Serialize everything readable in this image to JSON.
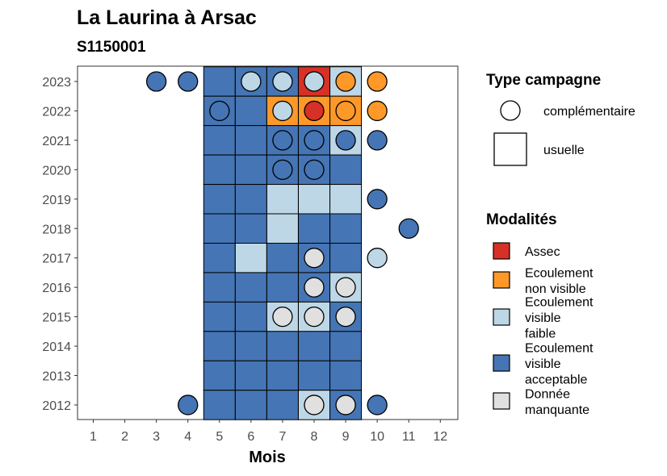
{
  "chart_data": {
    "type": "heatmap",
    "title": "La Laurina à Arsac",
    "subtitle": "S1150001",
    "xlabel": "Mois",
    "ylabel": "",
    "x_ticks": [
      "1",
      "2",
      "3",
      "4",
      "5",
      "6",
      "7",
      "8",
      "9",
      "10",
      "11",
      "12"
    ],
    "y_ticks": [
      "2012",
      "2013",
      "2014",
      "2015",
      "2016",
      "2017",
      "2018",
      "2019",
      "2020",
      "2021",
      "2022",
      "2023"
    ],
    "colors": {
      "Assec": "#d73027",
      "Ecoulement non visible": "#fe9929",
      "Ecoulement visible faible": "#bdd7e7",
      "Ecoulement visible acceptable": "#4575b4",
      "Donnée manquante": "#e0e0e0"
    },
    "legend_campaign": {
      "title": "Type campagne",
      "items": [
        "complémentaire",
        "usuelle"
      ]
    },
    "legend_modalites": {
      "title": "Modalités",
      "items": [
        {
          "key": "Assec",
          "lines": [
            "Assec"
          ]
        },
        {
          "key": "Ecoulement non visible",
          "lines": [
            "Ecoulement",
            "non visible"
          ]
        },
        {
          "key": "Ecoulement visible faible",
          "lines": [
            "Ecoulement",
            "visible",
            "faible"
          ]
        },
        {
          "key": "Ecoulement visible acceptable",
          "lines": [
            "Ecoulement",
            "visible",
            "acceptable"
          ]
        },
        {
          "key": "Donnée manquante",
          "lines": [
            "Donnée",
            "manquante"
          ]
        }
      ]
    },
    "usuelle_series": [
      {
        "year": 2023,
        "months": {
          "5": "Ecoulement visible acceptable",
          "6": "Ecoulement visible acceptable",
          "7": "Ecoulement visible acceptable",
          "8": "Assec",
          "9": "Ecoulement visible faible"
        }
      },
      {
        "year": 2022,
        "months": {
          "5": "Ecoulement visible acceptable",
          "6": "Ecoulement visible acceptable",
          "7": "Ecoulement non visible",
          "8": "Ecoulement non visible",
          "9": "Ecoulement non visible"
        }
      },
      {
        "year": 2021,
        "months": {
          "5": "Ecoulement visible acceptable",
          "6": "Ecoulement visible acceptable",
          "7": "Ecoulement visible acceptable",
          "8": "Ecoulement visible acceptable",
          "9": "Ecoulement visible faible"
        }
      },
      {
        "year": 2020,
        "months": {
          "5": "Ecoulement visible acceptable",
          "6": "Ecoulement visible acceptable",
          "7": "Ecoulement visible acceptable",
          "8": "Ecoulement visible acceptable",
          "9": "Ecoulement visible acceptable"
        }
      },
      {
        "year": 2019,
        "months": {
          "5": "Ecoulement visible acceptable",
          "6": "Ecoulement visible acceptable",
          "7": "Ecoulement visible faible",
          "8": "Ecoulement visible faible",
          "9": "Ecoulement visible faible"
        }
      },
      {
        "year": 2018,
        "months": {
          "5": "Ecoulement visible acceptable",
          "6": "Ecoulement visible acceptable",
          "7": "Ecoulement visible faible",
          "8": "Ecoulement visible acceptable",
          "9": "Ecoulement visible acceptable"
        }
      },
      {
        "year": 2017,
        "months": {
          "5": "Ecoulement visible acceptable",
          "6": "Ecoulement visible faible",
          "7": "Ecoulement visible acceptable",
          "8": "Ecoulement visible acceptable",
          "9": "Ecoulement visible acceptable"
        }
      },
      {
        "year": 2016,
        "months": {
          "5": "Ecoulement visible acceptable",
          "6": "Ecoulement visible acceptable",
          "7": "Ecoulement visible acceptable",
          "8": "Ecoulement visible acceptable",
          "9": "Ecoulement visible faible"
        }
      },
      {
        "year": 2015,
        "months": {
          "5": "Ecoulement visible acceptable",
          "6": "Ecoulement visible acceptable",
          "7": "Ecoulement visible faible",
          "8": "Ecoulement visible faible",
          "9": "Ecoulement visible acceptable"
        }
      },
      {
        "year": 2014,
        "months": {
          "5": "Ecoulement visible acceptable",
          "6": "Ecoulement visible acceptable",
          "7": "Ecoulement visible acceptable",
          "8": "Ecoulement visible acceptable",
          "9": "Ecoulement visible acceptable"
        }
      },
      {
        "year": 2013,
        "months": {
          "5": "Ecoulement visible acceptable",
          "6": "Ecoulement visible acceptable",
          "7": "Ecoulement visible acceptable",
          "8": "Ecoulement visible acceptable",
          "9": "Ecoulement visible acceptable"
        }
      },
      {
        "year": 2012,
        "months": {
          "5": "Ecoulement visible acceptable",
          "6": "Ecoulement visible acceptable",
          "7": "Ecoulement visible acceptable",
          "8": "Ecoulement visible faible",
          "9": "Ecoulement visible acceptable"
        }
      }
    ],
    "complementaire_points": [
      {
        "year": 2023,
        "month": 3,
        "modalite": "Ecoulement visible acceptable"
      },
      {
        "year": 2023,
        "month": 4,
        "modalite": "Ecoulement visible acceptable"
      },
      {
        "year": 2023,
        "month": 6,
        "modalite": "Ecoulement visible faible"
      },
      {
        "year": 2023,
        "month": 7,
        "modalite": "Ecoulement visible faible"
      },
      {
        "year": 2023,
        "month": 8,
        "modalite": "Ecoulement visible faible"
      },
      {
        "year": 2023,
        "month": 9,
        "modalite": "Ecoulement non visible"
      },
      {
        "year": 2023,
        "month": 10,
        "modalite": "Ecoulement non visible"
      },
      {
        "year": 2022,
        "month": 5,
        "modalite": "Ecoulement visible acceptable"
      },
      {
        "year": 2022,
        "month": 7,
        "modalite": "Ecoulement visible faible"
      },
      {
        "year": 2022,
        "month": 8,
        "modalite": "Assec"
      },
      {
        "year": 2022,
        "month": 9,
        "modalite": "Ecoulement non visible"
      },
      {
        "year": 2022,
        "month": 10,
        "modalite": "Ecoulement non visible"
      },
      {
        "year": 2021,
        "month": 7,
        "modalite": "Ecoulement visible acceptable"
      },
      {
        "year": 2021,
        "month": 8,
        "modalite": "Ecoulement visible acceptable"
      },
      {
        "year": 2021,
        "month": 9,
        "modalite": "Ecoulement visible acceptable"
      },
      {
        "year": 2021,
        "month": 10,
        "modalite": "Ecoulement visible acceptable"
      },
      {
        "year": 2020,
        "month": 7,
        "modalite": "Ecoulement visible acceptable"
      },
      {
        "year": 2020,
        "month": 8,
        "modalite": "Ecoulement visible acceptable"
      },
      {
        "year": 2019,
        "month": 10,
        "modalite": "Ecoulement visible acceptable"
      },
      {
        "year": 2018,
        "month": 11,
        "modalite": "Ecoulement visible acceptable"
      },
      {
        "year": 2017,
        "month": 8,
        "modalite": "Donnée manquante"
      },
      {
        "year": 2017,
        "month": 10,
        "modalite": "Ecoulement visible faible"
      },
      {
        "year": 2016,
        "month": 8,
        "modalite": "Donnée manquante"
      },
      {
        "year": 2016,
        "month": 9,
        "modalite": "Donnée manquante"
      },
      {
        "year": 2015,
        "month": 7,
        "modalite": "Donnée manquante"
      },
      {
        "year": 2015,
        "month": 8,
        "modalite": "Donnée manquante"
      },
      {
        "year": 2015,
        "month": 9,
        "modalite": "Donnée manquante"
      },
      {
        "year": 2012,
        "month": 4,
        "modalite": "Ecoulement visible acceptable"
      },
      {
        "year": 2012,
        "month": 8,
        "modalite": "Donnée manquante"
      },
      {
        "year": 2012,
        "month": 9,
        "modalite": "Donnée manquante"
      },
      {
        "year": 2012,
        "month": 10,
        "modalite": "Ecoulement visible acceptable"
      }
    ]
  }
}
